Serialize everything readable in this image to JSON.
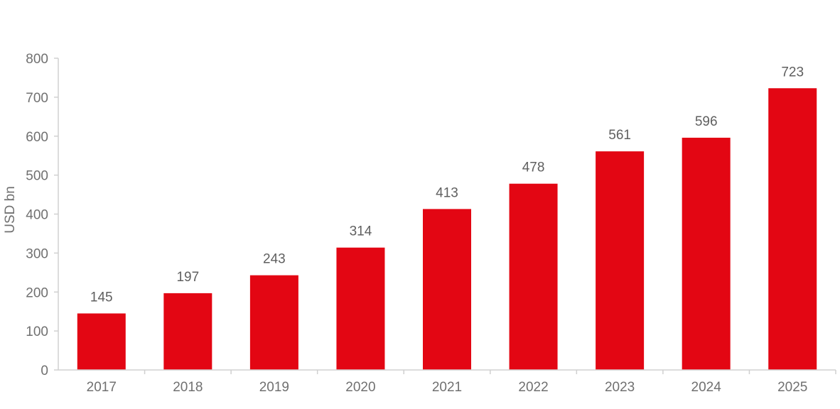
{
  "chart_data": {
    "type": "bar",
    "categories": [
      "2017",
      "2018",
      "2019",
      "2020",
      "2021",
      "2022",
      "2023",
      "2024",
      "2025"
    ],
    "values": [
      145,
      197,
      243,
      314,
      413,
      478,
      561,
      596,
      723
    ],
    "title": "",
    "xlabel": "",
    "ylabel": "USD bn",
    "ylim": [
      0,
      800
    ],
    "yticks": [
      0,
      100,
      200,
      300,
      400,
      500,
      600,
      700,
      800
    ],
    "grid": false,
    "legend": "none",
    "bar_color": "#e30613",
    "axis_color": "#d0d0d0"
  }
}
